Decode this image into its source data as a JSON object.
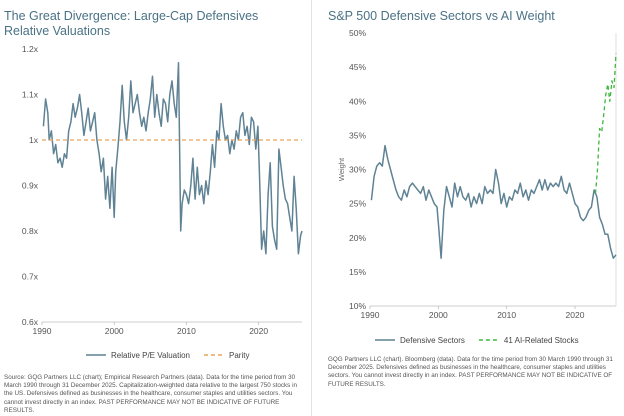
{
  "chart_data": [
    {
      "type": "line",
      "title": "The Great Divergence: Large-Cap Defensives Relative Valuations",
      "xlabel": "",
      "ylabel": "",
      "xlim": [
        1990,
        2026
      ],
      "ylim": [
        0.6,
        1.2
      ],
      "x_ticks": [
        "1990",
        "2000",
        "2010",
        "2020"
      ],
      "y_ticks": [
        "0.6x",
        "0.7x",
        "0.8x",
        "0.9x",
        "1x",
        "1.1x",
        "1.2x"
      ],
      "series": [
        {
          "name": "Relative P/E Valuation",
          "color": "#5f8294",
          "style": "solid",
          "x": [
            1990.2,
            1990.5,
            1990.8,
            1991.0,
            1991.3,
            1991.6,
            1991.9,
            1992.2,
            1992.5,
            1992.8,
            1993.1,
            1993.4,
            1993.7,
            1994.0,
            1994.3,
            1994.6,
            1994.9,
            1995.2,
            1995.5,
            1995.8,
            1996.1,
            1996.4,
            1996.7,
            1997.0,
            1997.3,
            1997.6,
            1997.9,
            1998.2,
            1998.5,
            1998.8,
            1999.1,
            1999.4,
            1999.7,
            2000.0,
            2000.2,
            2000.5,
            2000.8,
            2001.1,
            2001.4,
            2001.7,
            2002.0,
            2002.3,
            2002.6,
            2002.9,
            2003.2,
            2003.5,
            2003.8,
            2004.1,
            2004.4,
            2004.7,
            2005.0,
            2005.3,
            2005.6,
            2005.9,
            2006.2,
            2006.5,
            2006.8,
            2007.1,
            2007.4,
            2007.7,
            2008.0,
            2008.3,
            2008.6,
            2008.9,
            2009.2,
            2009.4,
            2009.7,
            2010.0,
            2010.3,
            2010.6,
            2010.9,
            2011.2,
            2011.5,
            2011.8,
            2012.1,
            2012.4,
            2012.7,
            2013.0,
            2013.3,
            2013.6,
            2013.9,
            2014.2,
            2014.5,
            2014.8,
            2015.1,
            2015.4,
            2015.7,
            2016.0,
            2016.3,
            2016.6,
            2016.9,
            2017.2,
            2017.5,
            2017.8,
            2018.1,
            2018.4,
            2018.7,
            2019.0,
            2019.3,
            2019.6,
            2019.9,
            2020.1,
            2020.4,
            2020.7,
            2021.0,
            2021.3,
            2021.6,
            2021.9,
            2022.2,
            2022.5,
            2022.8,
            2023.1,
            2023.4,
            2023.7,
            2024.0,
            2024.3,
            2024.6,
            2024.9,
            2025.2,
            2025.5,
            2025.8,
            2026.0
          ],
          "y": [
            1.03,
            1.09,
            1.06,
            1.0,
            1.02,
            0.97,
            0.99,
            0.95,
            0.96,
            0.94,
            0.97,
            0.96,
            1.02,
            1.04,
            1.08,
            1.05,
            1.07,
            1.1,
            1.06,
            1.01,
            1.04,
            1.07,
            1.02,
            1.04,
            1.06,
            1.0,
            0.97,
            0.93,
            0.96,
            0.87,
            0.92,
            0.85,
            0.94,
            0.83,
            0.93,
            0.98,
            1.04,
            1.12,
            1.04,
            1.0,
            1.05,
            1.13,
            1.06,
            1.08,
            1.1,
            1.06,
            1.03,
            1.05,
            1.02,
            1.06,
            1.09,
            1.14,
            1.05,
            1.1,
            1.06,
            1.03,
            1.09,
            1.08,
            1.04,
            1.1,
            1.13,
            1.08,
            1.05,
            1.17,
            0.8,
            0.86,
            0.89,
            0.88,
            0.86,
            0.9,
            0.96,
            0.87,
            0.94,
            0.88,
            0.9,
            0.86,
            0.91,
            0.88,
            0.93,
            0.99,
            0.94,
            1.02,
            1.0,
            1.08,
            1.03,
            1.0,
            1.01,
            0.97,
            1.0,
            0.98,
            1.02,
            1.0,
            1.05,
            1.06,
            1.01,
            1.03,
            0.99,
            1.05,
            1.04,
            0.98,
            1.03,
            0.93,
            0.76,
            0.8,
            0.75,
            0.88,
            0.95,
            0.81,
            0.78,
            0.76,
            0.98,
            0.94,
            0.9,
            0.87,
            0.86,
            0.83,
            0.8,
            0.92,
            0.85,
            0.75,
            0.79,
            0.8
          ]
        },
        {
          "name": "Parity",
          "color": "#e8a25a",
          "style": "dashed",
          "x": [
            1990,
            2026
          ],
          "y": [
            1.0,
            1.0
          ]
        }
      ],
      "legend": [
        "Relative P/E Valuation",
        "Parity"
      ],
      "legend_position": "bottom",
      "note": "Source: GQG Partners LLC (chart); Empirical Research Partners (data). Data for the time period from 30 March 1990 through 31 December 2025. Capitalization-weighted data relative to the largest 750 stocks in the US. Defensives defined as businesses in the healthcare, consumer staples and utilities sectors. You cannot invest directly in an index. PAST PERFORMANCE MAY NOT BE INDICATIVE OF FUTURE RESULTS."
    },
    {
      "type": "line",
      "title": "S&P 500 Defensive Sectors vs AI Weight",
      "xlabel": "",
      "ylabel": "Weight",
      "xlim": [
        1990,
        2026
      ],
      "ylim": [
        10,
        50
      ],
      "x_ticks": [
        "1990",
        "2000",
        "2010",
        "2020"
      ],
      "y_ticks": [
        "10%",
        "15%",
        "20%",
        "25%",
        "30%",
        "35%",
        "40%",
        "45%",
        "50%"
      ],
      "series": [
        {
          "name": "Defensive Sectors",
          "color": "#5f8294",
          "style": "solid",
          "x": [
            1990.2,
            1990.6,
            1991.0,
            1991.4,
            1991.8,
            1992.2,
            1992.6,
            1993.0,
            1993.4,
            1993.8,
            1994.2,
            1994.6,
            1995.0,
            1995.4,
            1995.8,
            1996.2,
            1996.6,
            1997.0,
            1997.4,
            1997.8,
            1998.2,
            1998.6,
            1999.0,
            1999.4,
            1999.8,
            2000.1,
            2000.4,
            2000.8,
            2001.2,
            2001.6,
            2002.0,
            2002.4,
            2002.8,
            2003.2,
            2003.6,
            2004.0,
            2004.4,
            2004.8,
            2005.2,
            2005.6,
            2006.0,
            2006.4,
            2006.8,
            2007.2,
            2007.6,
            2008.0,
            2008.4,
            2008.8,
            2009.2,
            2009.6,
            2010.0,
            2010.4,
            2010.8,
            2011.2,
            2011.6,
            2012.0,
            2012.4,
            2012.8,
            2013.2,
            2013.6,
            2014.0,
            2014.4,
            2014.8,
            2015.2,
            2015.6,
            2016.0,
            2016.4,
            2016.8,
            2017.2,
            2017.6,
            2018.0,
            2018.4,
            2018.8,
            2019.2,
            2019.6,
            2020.0,
            2020.4,
            2020.8,
            2021.2,
            2021.6,
            2022.0,
            2022.4,
            2022.8,
            2023.2,
            2023.6,
            2024.0,
            2024.4,
            2024.8,
            2025.2,
            2025.6,
            2026.0
          ],
          "y": [
            25.5,
            29,
            30.5,
            31,
            30.5,
            33.5,
            31.5,
            30,
            28.5,
            27,
            26,
            25.5,
            27,
            26,
            27.5,
            28,
            27.5,
            27,
            26.5,
            27.5,
            25.5,
            27,
            26,
            25,
            24.5,
            21,
            17,
            24,
            27.5,
            26,
            24.5,
            28,
            26,
            27.5,
            26,
            25.5,
            26.5,
            24.5,
            26,
            25,
            26.5,
            25,
            27.5,
            26.5,
            27,
            26.5,
            30,
            28,
            25,
            26.5,
            24.5,
            26,
            25.5,
            27,
            26.5,
            28,
            26,
            27,
            25.5,
            27,
            26.5,
            27.5,
            28.5,
            27,
            28.5,
            27,
            28,
            27.5,
            28,
            27.5,
            29,
            27,
            26.5,
            28,
            26.5,
            25,
            24.5,
            23,
            22.5,
            23,
            24,
            24.5,
            27,
            26,
            23,
            22,
            20.5,
            20.5,
            18.5,
            17,
            17.5
          ]
        },
        {
          "name": "41 AI-Related Stocks",
          "color": "#3db83d",
          "style": "dashed",
          "x": [
            2023.0,
            2023.3,
            2023.6,
            2023.9,
            2024.2,
            2024.5,
            2024.8,
            2025.1,
            2025.4,
            2025.7,
            2026.0
          ],
          "y": [
            26.5,
            30,
            36,
            35.5,
            38,
            41,
            42.5,
            40,
            43,
            42,
            47
          ]
        }
      ],
      "legend": [
        "Defensive Sectors",
        "41 AI-Related Stocks"
      ],
      "legend_position": "bottom",
      "note": "GQG Partners LLC (chart). Bloomberg (data). Data for the time period from 30 March 1990 through 31 December 2025. Defensives defined as businesses in the healthcare, consumer staples and utilities sectors. You cannot invest directly in an index. PAST PERFORMANCE MAY NOT BE INDICATIVE OF FUTURE RESULTS."
    }
  ]
}
